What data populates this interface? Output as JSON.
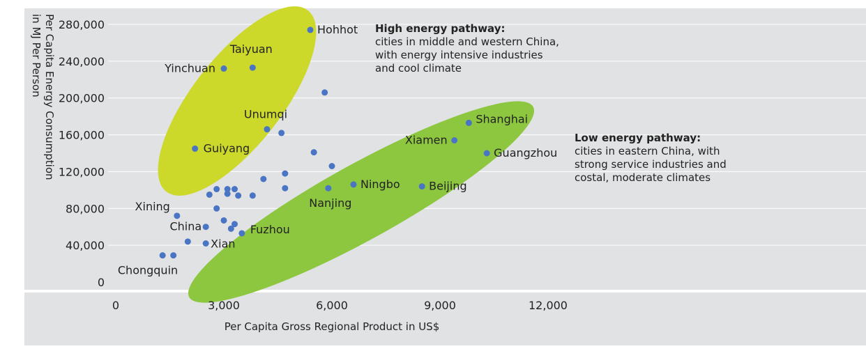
{
  "chart_data": {
    "type": "scatter",
    "title": "",
    "xlabel": "Per Capita Gross Regional Product in US$",
    "ylabel_lines": [
      "Per Capita Energy Consumption",
      "in MJ Per Person"
    ],
    "xlim": [
      0,
      12000
    ],
    "ylim": [
      0,
      280000
    ],
    "x_ticks": [
      0,
      3000,
      6000,
      9000,
      12000
    ],
    "x_tick_labels": [
      "0",
      "3,000",
      "6,000",
      "9,000",
      "12,000"
    ],
    "y_ticks": [
      0,
      40000,
      80000,
      120000,
      160000,
      200000,
      240000,
      280000
    ],
    "y_tick_labels": [
      "0",
      "40,000",
      "80,000",
      "120,000",
      "160,000",
      "200,000",
      "240,000",
      "280,000"
    ],
    "grid": "horizontal",
    "colors": {
      "background": "#e1e2e4",
      "grid": "#ffffff",
      "point": "#4a74c4",
      "high_ellipse": "#ccd82a",
      "low_ellipse": "#8dc63f"
    },
    "points": [
      {
        "x": 5400,
        "y": 274000,
        "label": "Hohhot"
      },
      {
        "x": 3800,
        "y": 233000,
        "label": "Taiyuan"
      },
      {
        "x": 3000,
        "y": 232000,
        "label": "Yinchuan"
      },
      {
        "x": 5800,
        "y": 206000,
        "label": ""
      },
      {
        "x": 4200,
        "y": 166000,
        "label": "Unumqi"
      },
      {
        "x": 4600,
        "y": 162000,
        "label": ""
      },
      {
        "x": 2200,
        "y": 145000,
        "label": "Guiyang"
      },
      {
        "x": 5500,
        "y": 141000,
        "label": ""
      },
      {
        "x": 6000,
        "y": 126000,
        "label": ""
      },
      {
        "x": 4700,
        "y": 118000,
        "label": ""
      },
      {
        "x": 4100,
        "y": 112000,
        "label": ""
      },
      {
        "x": 4700,
        "y": 102000,
        "label": ""
      },
      {
        "x": 2800,
        "y": 101000,
        "label": ""
      },
      {
        "x": 3100,
        "y": 101000,
        "label": ""
      },
      {
        "x": 3300,
        "y": 101000,
        "label": ""
      },
      {
        "x": 2600,
        "y": 95000,
        "label": ""
      },
      {
        "x": 3100,
        "y": 96000,
        "label": ""
      },
      {
        "x": 3400,
        "y": 94000,
        "label": ""
      },
      {
        "x": 3800,
        "y": 94000,
        "label": ""
      },
      {
        "x": 2800,
        "y": 80000,
        "label": ""
      },
      {
        "x": 1700,
        "y": 72000,
        "label": "Xining"
      },
      {
        "x": 3000,
        "y": 67000,
        "label": ""
      },
      {
        "x": 3300,
        "y": 63000,
        "label": ""
      },
      {
        "x": 2500,
        "y": 60000,
        "label": "China"
      },
      {
        "x": 3200,
        "y": 58000,
        "label": ""
      },
      {
        "x": 3500,
        "y": 53000,
        "label": "Fuzhou"
      },
      {
        "x": 2000,
        "y": 44000,
        "label": ""
      },
      {
        "x": 2500,
        "y": 42000,
        "label": "Xian"
      },
      {
        "x": 1300,
        "y": 29000,
        "label": "Chongquin"
      },
      {
        "x": 1600,
        "y": 29000,
        "label": ""
      },
      {
        "x": 5900,
        "y": 102000,
        "label": "Nanjing"
      },
      {
        "x": 6600,
        "y": 106000,
        "label": "Ningbo"
      },
      {
        "x": 8500,
        "y": 104000,
        "label": "Beijing"
      },
      {
        "x": 10300,
        "y": 140000,
        "label": "Guangzhou"
      },
      {
        "x": 9400,
        "y": 154000,
        "label": "Xiamen"
      },
      {
        "x": 9800,
        "y": 173000,
        "label": "Shanghai"
      }
    ],
    "annotations": [
      {
        "id": "high",
        "title": "High energy pathway:",
        "lines": [
          "cities in middle and western China,",
          "with energy intensive industries",
          "and cool climate"
        ]
      },
      {
        "id": "low",
        "title": "Low energy pathway:",
        "lines": [
          "cities in eastern China, with",
          "strong service industries and",
          "costal, moderate climates"
        ]
      }
    ]
  }
}
